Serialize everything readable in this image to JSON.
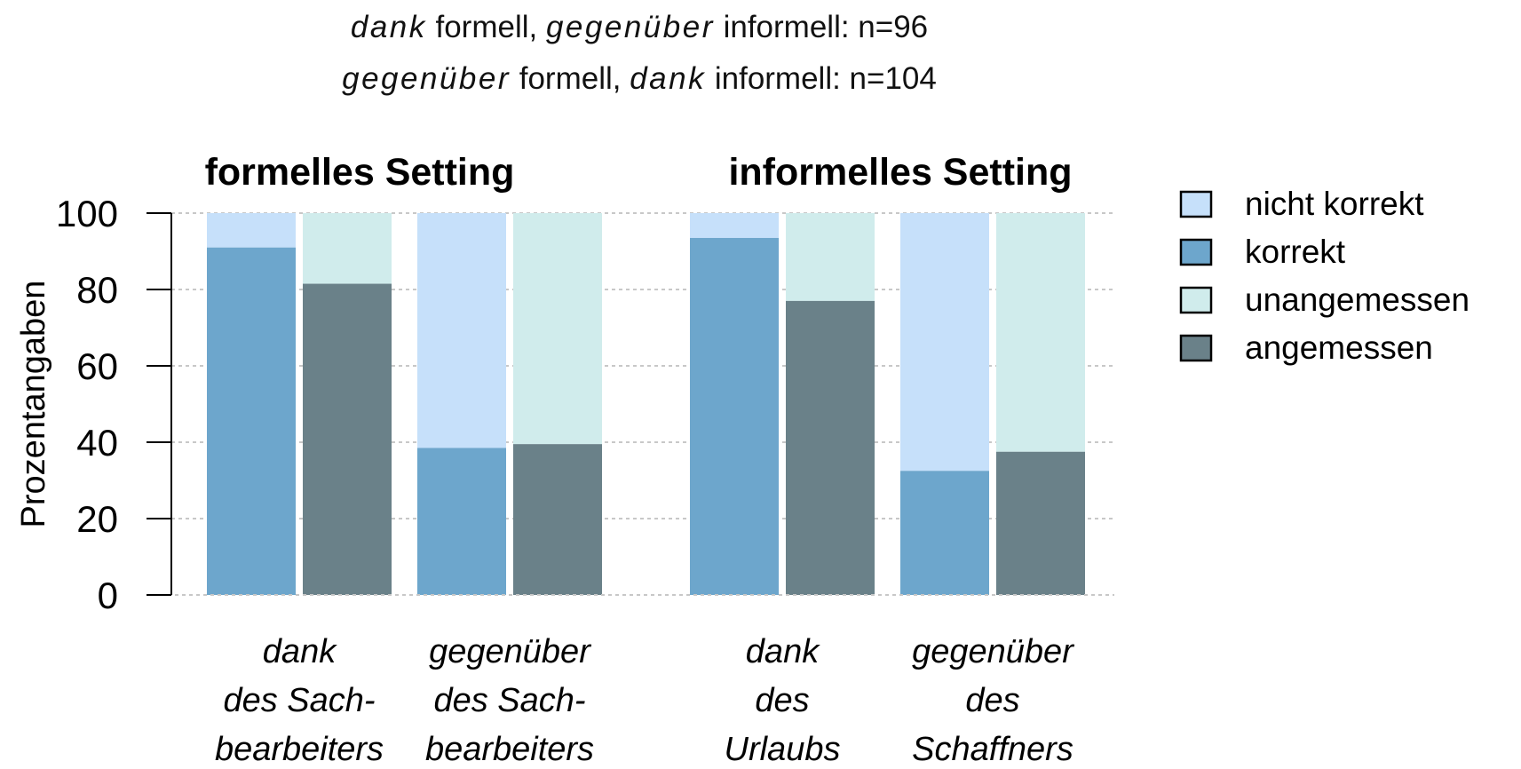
{
  "chart_data": {
    "type": "bar",
    "stacked": true,
    "title_lines": [
      {
        "parts": [
          {
            "text": "dank",
            "italic": true
          },
          {
            "text": " formell, ",
            "italic": false
          },
          {
            "text": "gegenüber",
            "italic": true
          },
          {
            "text": " informell: n=96",
            "italic": false
          }
        ]
      },
      {
        "parts": [
          {
            "text": "gegenüber",
            "italic": true
          },
          {
            "text": " formell, ",
            "italic": false
          },
          {
            "text": "dank",
            "italic": true
          },
          {
            "text": " informell: n=104",
            "italic": false
          }
        ]
      }
    ],
    "ylabel": "Prozentangaben",
    "ylim": [
      0,
      100
    ],
    "yticks": [
      0,
      20,
      40,
      60,
      80,
      100
    ],
    "grid": true,
    "legend_position": "right",
    "legend": [
      {
        "label": "nicht korrekt",
        "color": "#c6e0fa"
      },
      {
        "label": "korrekt",
        "color": "#6da6cc"
      },
      {
        "label": "unangemessen",
        "color": "#d0ecec"
      },
      {
        "label": "angemessen",
        "color": "#6a8189"
      }
    ],
    "panels": [
      {
        "title": "formelles Setting",
        "groups": [
          {
            "label_lines": [
              "dank",
              "des Sach-",
              "bearbeiters"
            ],
            "korrekt": 91,
            "angemessen": 81.5
          },
          {
            "label_lines": [
              "gegenüber",
              "des Sach-",
              "bearbeiters"
            ],
            "korrekt": 38.5,
            "angemessen": 39.5
          }
        ]
      },
      {
        "title": "informelles Setting",
        "groups": [
          {
            "label_lines": [
              "dank",
              "des",
              "Urlaubs"
            ],
            "korrekt": 93.5,
            "angemessen": 77
          },
          {
            "label_lines": [
              "gegenüber",
              "des",
              "Schaffners"
            ],
            "korrekt": 32.5,
            "angemessen": 37.5
          }
        ]
      }
    ]
  }
}
